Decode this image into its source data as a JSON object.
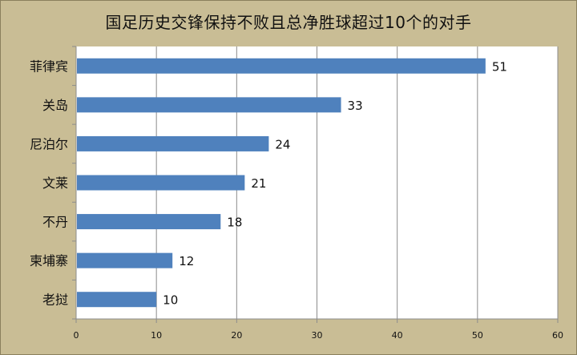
{
  "chart_data": {
    "type": "bar",
    "orientation": "horizontal",
    "title": "国足历史交锋保持不败且总净胜球超过10个的对手",
    "categories": [
      "菲律宾",
      "关岛",
      "尼泊尔",
      "文莱",
      "不丹",
      "柬埔寨",
      "老挝"
    ],
    "values": [
      51,
      33,
      24,
      21,
      18,
      12,
      10
    ],
    "xlim": [
      0,
      60
    ],
    "xticks": [
      0,
      10,
      20,
      30,
      40,
      50,
      60
    ],
    "grid": true,
    "legend": "none",
    "colors": {
      "bar": "#4f81bd",
      "background": "#c9bd95",
      "plot": "#ffffff",
      "grid": "#8c8c8c"
    }
  }
}
